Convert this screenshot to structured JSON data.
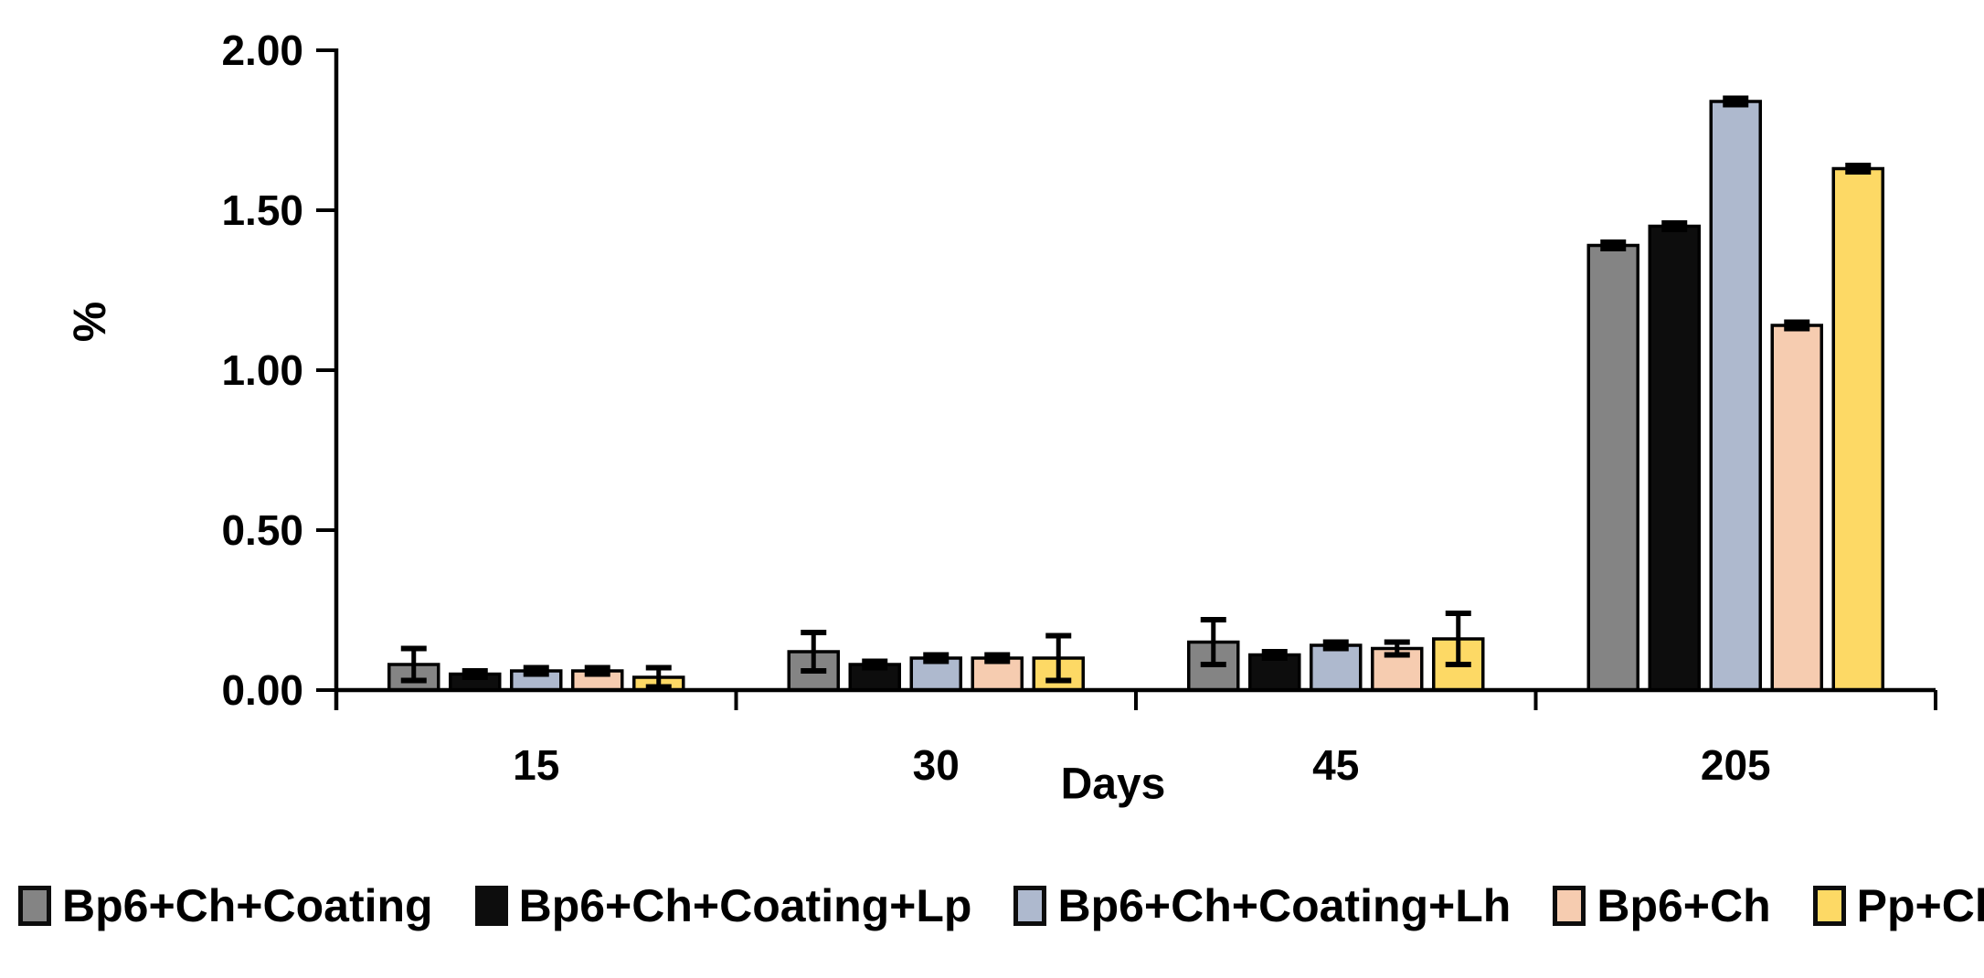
{
  "figure": {
    "background": "#ffffff",
    "axis_color": "#000000"
  },
  "chart_data": {
    "type": "bar",
    "title": "",
    "xlabel": "Days",
    "ylabel": "%",
    "categories": [
      "15",
      "30",
      "45",
      "205"
    ],
    "ylim": [
      0,
      2
    ],
    "ytick_labels": [
      "0.00",
      "0.50",
      "1.00",
      "1.50",
      "2.00"
    ],
    "ytick_values": [
      0,
      0.5,
      1,
      1.5,
      2
    ],
    "grid": false,
    "legend_position": "bottom",
    "error_bars": true,
    "bar_outline_color": "#000000",
    "series": [
      {
        "name": "Bp6+Ch+Coating",
        "color": "#848484",
        "values": [
          0.08,
          0.12,
          0.15,
          1.39
        ],
        "errors": [
          0.05,
          0.06,
          0.07,
          0.01
        ]
      },
      {
        "name": "Bp6+Ch+Coating+Lp",
        "color": "#0d0d0d",
        "values": [
          0.05,
          0.08,
          0.11,
          1.45
        ],
        "errors": [
          0.01,
          0.01,
          0.01,
          0.01
        ]
      },
      {
        "name": "Bp6+Ch+Coating+Lh",
        "color": "#aeb9ce",
        "values": [
          0.06,
          0.1,
          0.14,
          1.84
        ],
        "errors": [
          0.01,
          0.01,
          0.01,
          0.01
        ]
      },
      {
        "name": "Bp6+Ch",
        "color": "#f6ccb0",
        "values": [
          0.06,
          0.1,
          0.13,
          1.14
        ],
        "errors": [
          0.01,
          0.01,
          0.02,
          0.01
        ]
      },
      {
        "name": "Pp+Ch",
        "color": "#fdd965",
        "values": [
          0.04,
          0.1,
          0.16,
          1.63
        ],
        "errors": [
          0.03,
          0.07,
          0.08,
          0.01
        ]
      }
    ]
  }
}
